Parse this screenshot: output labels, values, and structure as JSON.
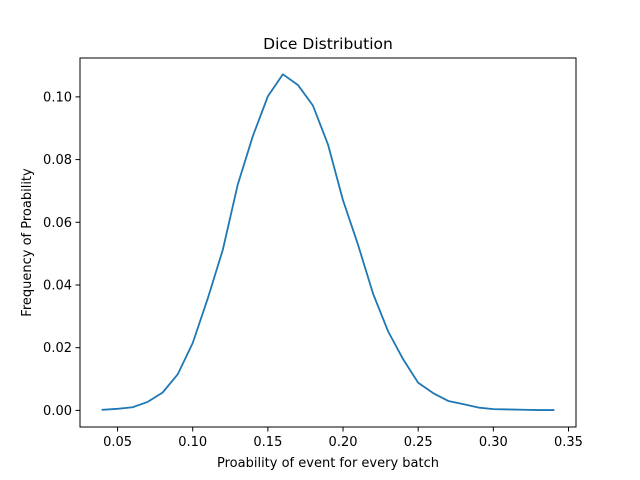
{
  "chart_data": {
    "type": "line",
    "title": "Dice Distribution",
    "xlabel": "Proability of event for every batch",
    "ylabel": "Frequency of Proability",
    "xlim": [
      0.025,
      0.355
    ],
    "ylim": [
      -0.0053,
      0.1124
    ],
    "grid": false,
    "xticks": [
      0.05,
      0.1,
      0.15,
      0.2,
      0.25,
      0.3,
      0.35
    ],
    "xtick_labels": [
      "0.05",
      "0.10",
      "0.15",
      "0.20",
      "0.25",
      "0.30",
      "0.35"
    ],
    "yticks": [
      0.0,
      0.02,
      0.04,
      0.06,
      0.08,
      0.1
    ],
    "ytick_labels": [
      "0.00",
      "0.02",
      "0.04",
      "0.06",
      "0.08",
      "0.10"
    ],
    "series": [
      {
        "color": "#1f77b4",
        "x": [
          0.04,
          0.05,
          0.06,
          0.07,
          0.08,
          0.09,
          0.1,
          0.11,
          0.12,
          0.13,
          0.14,
          0.15,
          0.16,
          0.17,
          0.18,
          0.19,
          0.2,
          0.21,
          0.22,
          0.23,
          0.24,
          0.25,
          0.26,
          0.27,
          0.28,
          0.29,
          0.3,
          0.31,
          0.32,
          0.33,
          0.34
        ],
        "y": [
          0.0002,
          0.0005,
          0.001,
          0.0027,
          0.0057,
          0.0115,
          0.0215,
          0.0357,
          0.0512,
          0.0721,
          0.0875,
          0.1002,
          0.1072,
          0.1038,
          0.0972,
          0.0848,
          0.067,
          0.0528,
          0.0372,
          0.0252,
          0.0163,
          0.0088,
          0.0055,
          0.003,
          0.002,
          0.0009,
          0.0004,
          0.0003,
          0.0002,
          0.0001,
          0.0001
        ]
      }
    ]
  }
}
